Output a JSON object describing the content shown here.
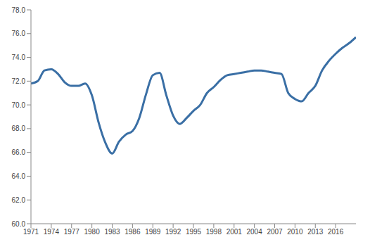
{
  "chart_data": {
    "type": "line",
    "x": [
      1971,
      1972,
      1973,
      1974,
      1975,
      1976,
      1977,
      1978,
      1979,
      1980,
      1981,
      1982,
      1983,
      1984,
      1985,
      1986,
      1987,
      1988,
      1989,
      1990,
      1991,
      1992,
      1993,
      1994,
      1995,
      1996,
      1997,
      1998,
      1999,
      2000,
      2001,
      2002,
      2003,
      2004,
      2005,
      2006,
      2007,
      2008,
      2009,
      2010,
      2011,
      2012,
      2013,
      2014,
      2015,
      2016,
      2017,
      2018,
      2019
    ],
    "values": [
      71.8,
      72.0,
      72.9,
      73.0,
      72.6,
      71.9,
      71.6,
      71.6,
      71.8,
      70.8,
      68.5,
      66.8,
      65.9,
      66.9,
      67.5,
      67.8,
      68.9,
      70.9,
      72.5,
      72.7,
      70.8,
      69.1,
      68.4,
      68.9,
      69.5,
      70.0,
      71.0,
      71.5,
      72.1,
      72.5,
      72.6,
      72.7,
      72.8,
      72.9,
      72.9,
      72.8,
      72.7,
      72.6,
      71.0,
      70.5,
      70.3,
      71.0,
      71.6,
      72.9,
      73.7,
      74.3,
      74.8,
      75.2,
      75.7
    ],
    "color": "#3a6fa5",
    "xlim": [
      1971,
      2019
    ],
    "xticks": [
      1971,
      1974,
      1977,
      1980,
      1983,
      1986,
      1989,
      1992,
      1995,
      1998,
      2001,
      2004,
      2007,
      2010,
      2013,
      2016
    ],
    "ylim": [
      60,
      78
    ],
    "yticks": [
      {
        "value": 60,
        "label": "60.0"
      },
      {
        "value": 62,
        "label": "62.0"
      },
      {
        "value": 64,
        "label": "64.0"
      },
      {
        "value": 66,
        "label": "66.0"
      },
      {
        "value": 68,
        "label": "68.0"
      },
      {
        "value": 70,
        "label": "70.0"
      },
      {
        "value": 72,
        "label": "72.0"
      },
      {
        "value": 74,
        "label": "74.0"
      },
      {
        "value": 76,
        "label": "76.0"
      },
      {
        "value": 78,
        "label": "78.0"
      }
    ],
    "grid": false
  }
}
